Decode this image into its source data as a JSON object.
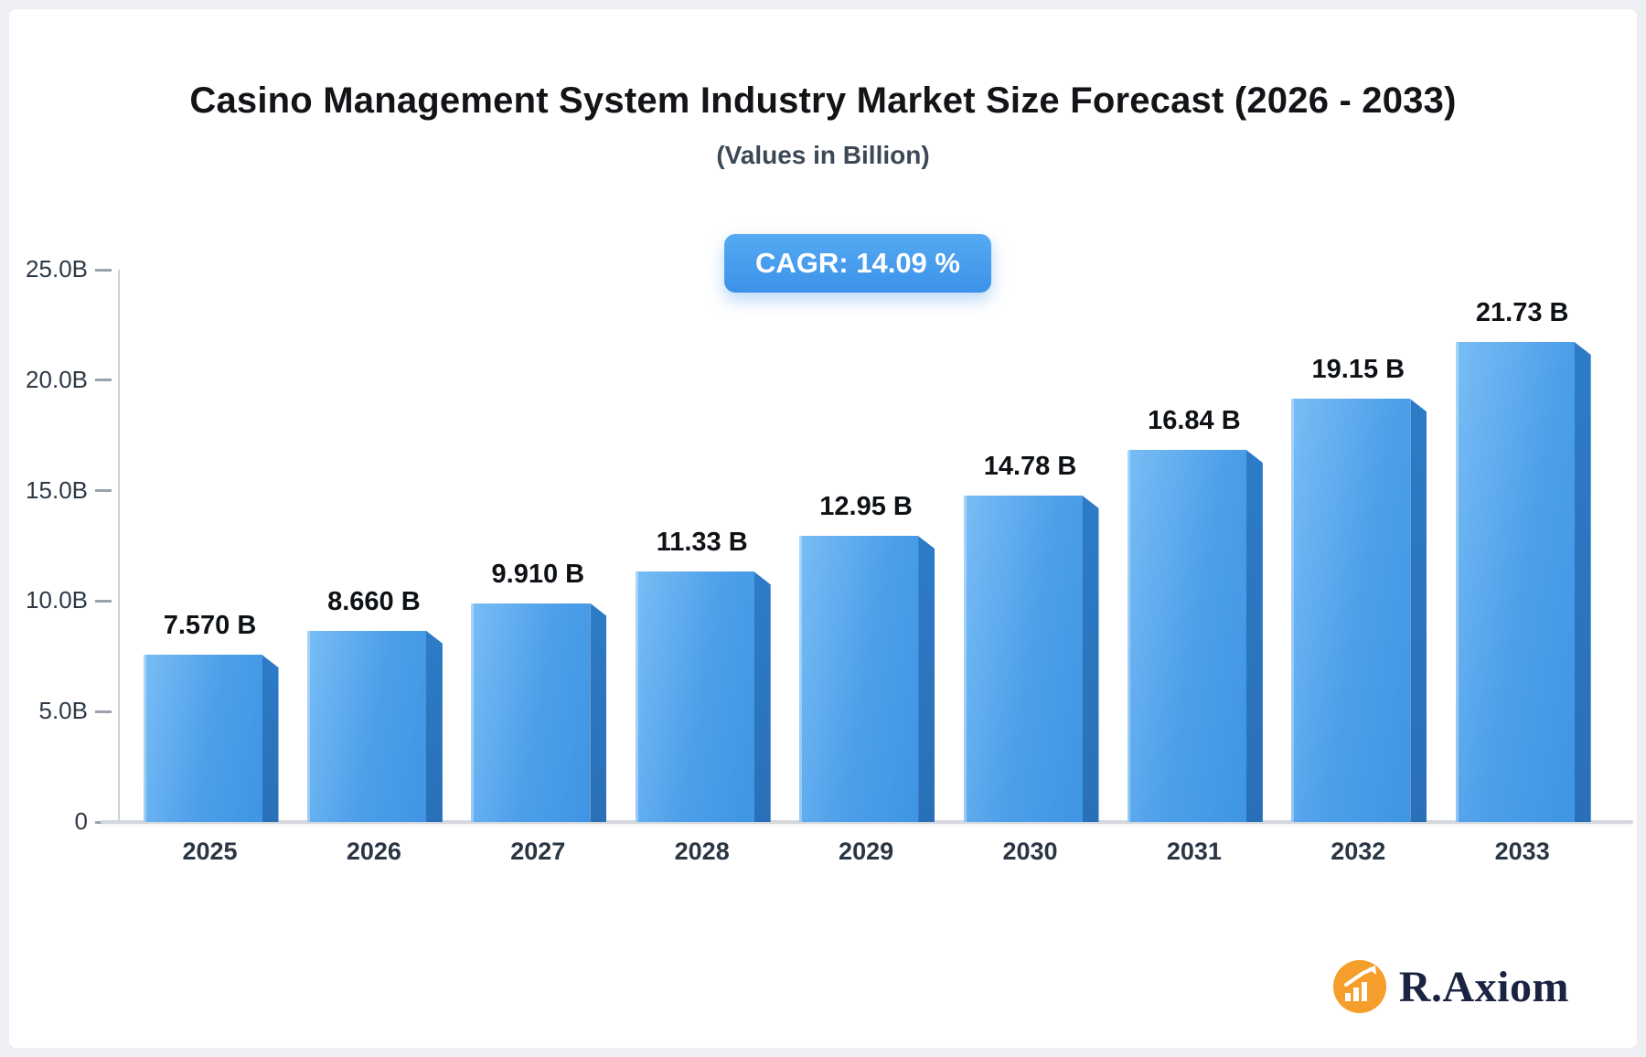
{
  "title": "Casino Management System Industry Market Size Forecast (2026 - 2033)",
  "subtitle": "(Values in Billion)",
  "badge": {
    "label": "CAGR: 14.09 %"
  },
  "logo": {
    "text": "R.Axiom",
    "icon": "bar-chart-circle-icon",
    "icon_color": "#F59E2B"
  },
  "chart_data": {
    "type": "bar",
    "title": "Casino Management System Industry Market Size Forecast (2026 - 2033)",
    "subtitle": "(Values in Billion)",
    "categories": [
      "2025",
      "2026",
      "2027",
      "2028",
      "2029",
      "2030",
      "2031",
      "2032",
      "2033"
    ],
    "values": [
      7.57,
      8.66,
      9.91,
      11.33,
      12.95,
      14.78,
      16.84,
      19.15,
      21.73
    ],
    "value_labels": [
      "7.570 B",
      "8.660 B",
      "9.910 B",
      "11.33 B",
      "12.95 B",
      "14.78 B",
      "16.84 B",
      "19.15 B",
      "21.73 B"
    ],
    "xlabel": "",
    "ylabel": "",
    "ylim": [
      0,
      25
    ],
    "yticks": [
      {
        "label": "0",
        "value": 0
      },
      {
        "label": "5.0B",
        "value": 5
      },
      {
        "label": "10.0B",
        "value": 10
      },
      {
        "label": "15.0B",
        "value": 15
      },
      {
        "label": "20.0B",
        "value": 20
      },
      {
        "label": "25.0B",
        "value": 25
      }
    ],
    "grid": false,
    "legend": false,
    "bar_front_color": "#4d9fe9",
    "bar_side_color": "#2c78c4",
    "annotation": "CAGR: 14.09 %"
  }
}
